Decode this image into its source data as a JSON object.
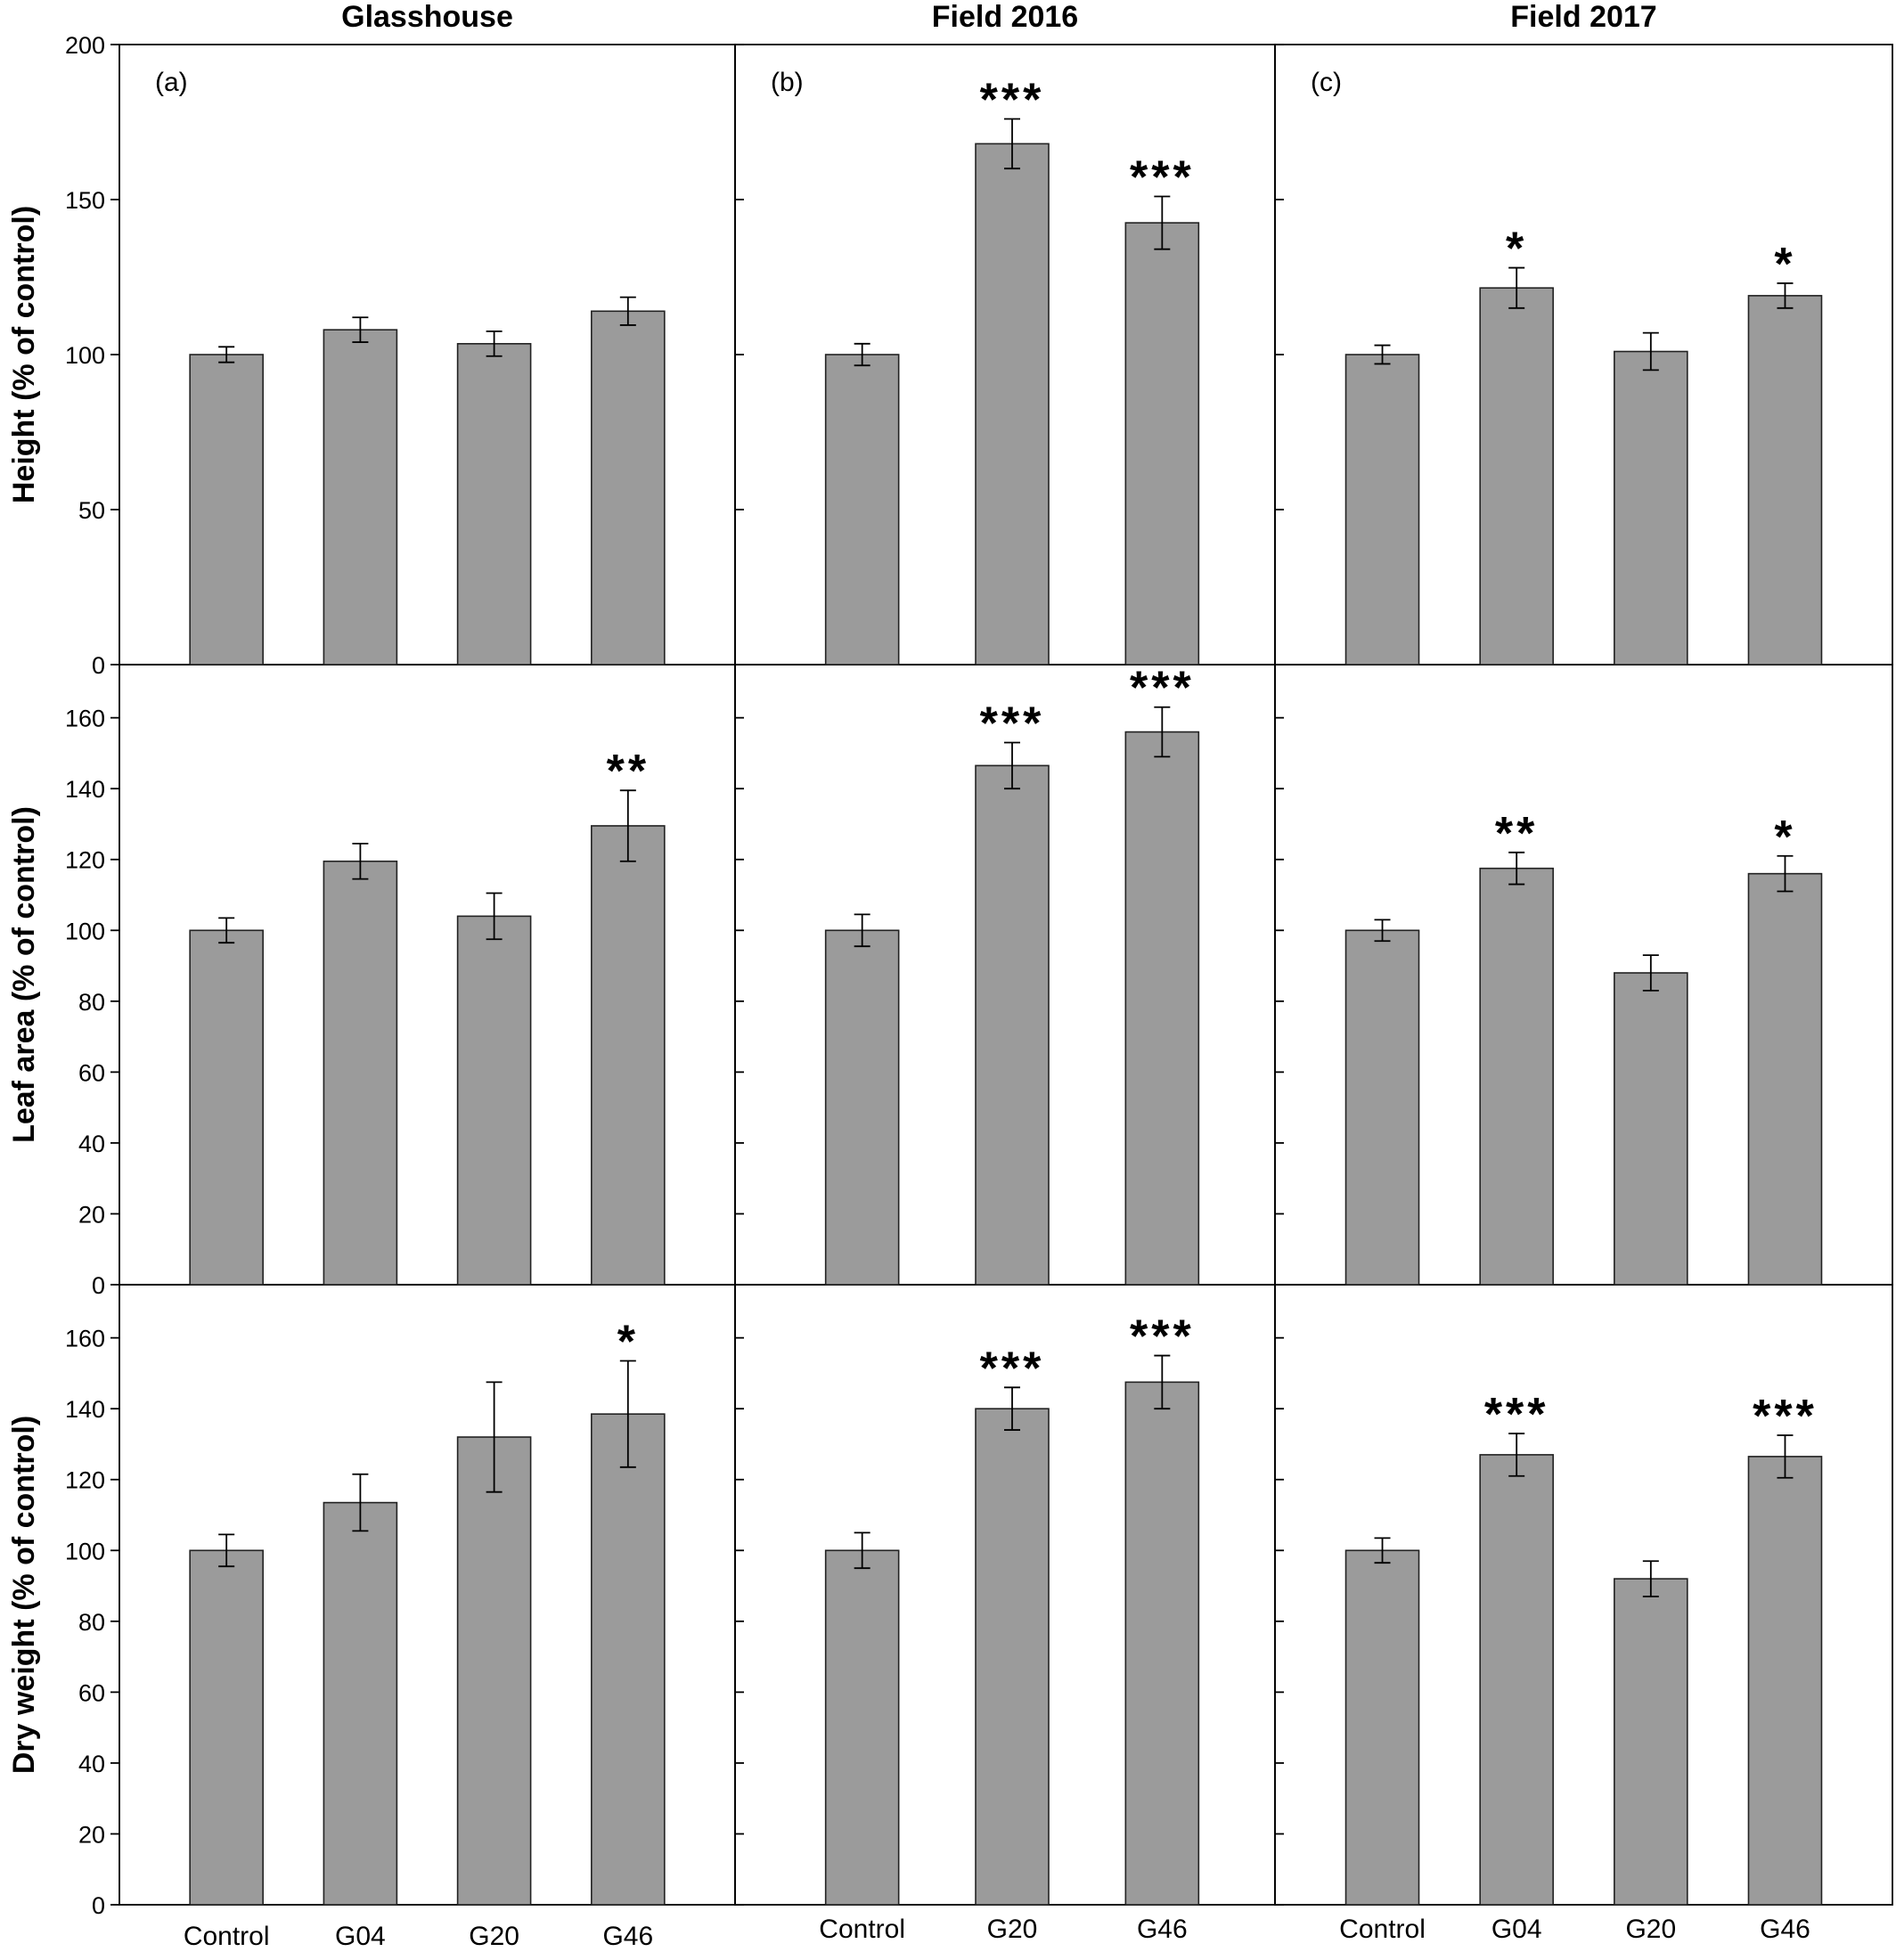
{
  "chart_data": {
    "type": "bar",
    "columns": [
      "Glasshouse",
      "Field 2016",
      "Field 2017"
    ],
    "rows": [
      {
        "ylabel": "Height (% of control)",
        "ylim": [
          0,
          200
        ],
        "yticks": [
          "0",
          "50",
          "100",
          "150",
          "200"
        ]
      },
      {
        "ylabel": "Leaf area (% of control)",
        "ylim": [
          0,
          175
        ],
        "yticks": [
          "0",
          "20",
          "40",
          "60",
          "80",
          "100",
          "120",
          "140",
          "160"
        ]
      },
      {
        "ylabel": "Dry weight (% of control)",
        "ylim": [
          0,
          175
        ],
        "yticks": [
          "0",
          "20",
          "40",
          "60",
          "80",
          "100",
          "120",
          "140",
          "160"
        ]
      }
    ],
    "panels": [
      {
        "label": "(a)",
        "row": 0,
        "col": 0,
        "categories": [
          "Control",
          "G04",
          "G20",
          "G46"
        ],
        "values": [
          100,
          108,
          103.5,
          114
        ],
        "errors": [
          2.5,
          4,
          4,
          4.5
        ],
        "significance": [
          "",
          "",
          "",
          ""
        ]
      },
      {
        "label": "(b)",
        "row": 0,
        "col": 1,
        "categories": [
          "Control",
          "G20",
          "G46"
        ],
        "values": [
          100,
          168,
          142.5
        ],
        "errors": [
          3.5,
          8,
          8.5
        ],
        "significance": [
          "",
          "***",
          "***"
        ]
      },
      {
        "label": "(c)",
        "row": 0,
        "col": 2,
        "categories": [
          "Control",
          "G04",
          "G20",
          "G46"
        ],
        "values": [
          100,
          121.5,
          101,
          119
        ],
        "errors": [
          3,
          6.5,
          6,
          4
        ],
        "significance": [
          "",
          "*",
          "",
          "*"
        ]
      },
      {
        "label": "",
        "row": 1,
        "col": 0,
        "categories": [
          "Control",
          "G04",
          "G20",
          "G46"
        ],
        "values": [
          100,
          119.5,
          104,
          129.5
        ],
        "errors": [
          3.5,
          5,
          6.5,
          10
        ],
        "significance": [
          "",
          "",
          "",
          "**"
        ]
      },
      {
        "label": "",
        "row": 1,
        "col": 1,
        "categories": [
          "Control",
          "G20",
          "G46"
        ],
        "values": [
          100,
          146.5,
          156
        ],
        "errors": [
          4.5,
          6.5,
          7
        ],
        "significance": [
          "",
          "***",
          "***"
        ]
      },
      {
        "label": "",
        "row": 1,
        "col": 2,
        "categories": [
          "Control",
          "G04",
          "G20",
          "G46"
        ],
        "values": [
          100,
          117.5,
          88,
          116
        ],
        "errors": [
          3,
          4.5,
          5,
          5
        ],
        "significance": [
          "",
          "**",
          "",
          "*"
        ]
      },
      {
        "label": "",
        "row": 2,
        "col": 0,
        "categories": [
          "Control",
          "G04",
          "G20",
          "G46"
        ],
        "values": [
          100,
          113.5,
          132,
          138.5
        ],
        "errors": [
          4.5,
          8,
          15.5,
          15
        ],
        "significance": [
          "",
          "",
          "",
          "*"
        ]
      },
      {
        "label": "",
        "row": 2,
        "col": 1,
        "categories": [
          "Control",
          "G20",
          "G46"
        ],
        "values": [
          100,
          140,
          147.5
        ],
        "errors": [
          5,
          6,
          7.5
        ],
        "significance": [
          "",
          "***",
          "***"
        ]
      },
      {
        "label": "",
        "row": 2,
        "col": 2,
        "categories": [
          "Control",
          "G04",
          "G20",
          "G46"
        ],
        "values": [
          100,
          127,
          92,
          126.5
        ],
        "errors": [
          3.5,
          6,
          5,
          6
        ],
        "significance": [
          "",
          "***",
          "",
          "***"
        ]
      }
    ],
    "bar_color": "#9b9b9b",
    "grid": false
  }
}
